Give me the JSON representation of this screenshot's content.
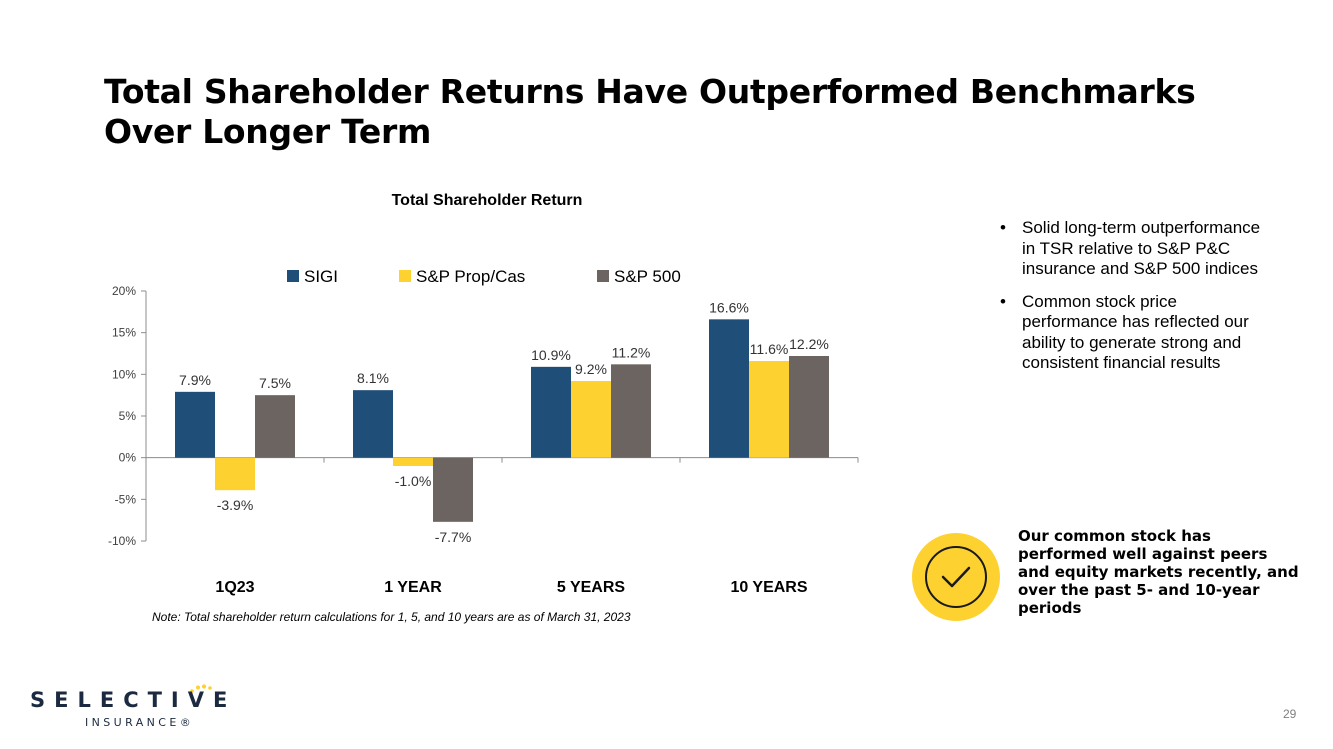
{
  "slide": {
    "title": "Total Shareholder Returns Have Outperformed Benchmarks Over Longer Term",
    "page_number": "29"
  },
  "chart_data": {
    "type": "bar",
    "title": "Total Shareholder Return",
    "categories": [
      "1Q23",
      "1 YEAR",
      "5 YEARS",
      "10 YEARS"
    ],
    "series": [
      {
        "name": "SIGI",
        "color": "#1f4e79",
        "values": [
          7.9,
          8.1,
          10.9,
          16.6
        ],
        "labels": [
          "7.9%",
          "8.1%",
          "10.9%",
          "16.6%"
        ]
      },
      {
        "name": "S&P Prop/Cas",
        "color": "#fdd130",
        "values": [
          -3.9,
          -1.0,
          9.2,
          11.6
        ],
        "labels": [
          "-3.9%",
          "-1.0%",
          "9.2%",
          "11.6%"
        ]
      },
      {
        "name": "S&P 500",
        "color": "#6b6461",
        "values": [
          7.5,
          -7.7,
          11.2,
          12.2
        ],
        "labels": [
          "7.5%",
          "-7.7%",
          "11.2%",
          "12.2%"
        ]
      }
    ],
    "yticks": [
      20,
      15,
      10,
      5,
      0,
      -5,
      -10
    ],
    "ytick_labels": [
      "20%",
      "15%",
      "10%",
      "5%",
      "0%",
      "-5%",
      "-10%"
    ],
    "ylim": [
      -10,
      20
    ],
    "legend_position": "top",
    "grid": false,
    "note": "Note: Total shareholder return calculations for 1, 5, and 10 years are as of March 31, 2023"
  },
  "bullets": [
    "Solid long-term outperformance in TSR relative to S&P P&C insurance and S&P 500 indices",
    "Common stock price performance has reflected our ability to generate strong and consistent financial results"
  ],
  "callout": {
    "text": "Our common stock has performed well against peers and equity markets recently, and over the past 5- and 10-year periods",
    "icon": "checkmark-circle-icon"
  },
  "logo": {
    "word": "SELECTIVE",
    "sub": "INSURANCE®"
  },
  "colors": {
    "sigi": "#1f4e79",
    "prop_cas": "#fdd130",
    "sp500": "#6b6461",
    "accent_yellow": "#fdd130",
    "brand_navy": "#1b2a41"
  }
}
